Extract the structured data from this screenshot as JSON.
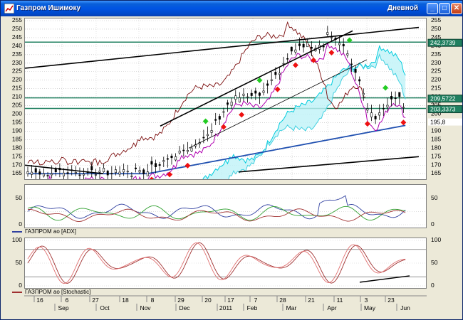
{
  "window": {
    "title": "Газпром Ишимоку",
    "right_title": "Дневной",
    "min_glyph": "_",
    "max_glyph": "□",
    "close_glyph": "✕"
  },
  "colors": {
    "grid": "#8a8a8a",
    "bull": "#000000",
    "up_signal": "#22cc22",
    "down_signal": "#ee1111",
    "cloud": "#00ccdd",
    "kijun": "#7a0b0b",
    "tenkan": "#b000b0",
    "sma": "#2050b0",
    "hline": "#208060",
    "trend": "#000000",
    "adx": "#3040a0",
    "stoch": "#a03030",
    "price_label_bg": "#208060"
  },
  "main_chart": {
    "y_ticks": [
      "255",
      "250",
      "245",
      "240",
      "235",
      "230",
      "225",
      "220",
      "215",
      "210",
      "205",
      "200",
      "195",
      "190",
      "185",
      "180",
      "175",
      "170",
      "165"
    ],
    "price_labels": [
      {
        "value": 242.3739,
        "text": "242,3739"
      },
      {
        "value": 209.5722,
        "text": "209,5722"
      },
      {
        "value": 203.3373,
        "text": "203,3373"
      },
      {
        "value": 195.8,
        "text": "195,8"
      }
    ]
  },
  "adx_panel": {
    "y_ticks": [
      "50",
      "0"
    ],
    "legend": "ГАЗПРОМ ao [ADX]"
  },
  "stoch_panel": {
    "y_ticks": [
      "100",
      "50",
      "0"
    ],
    "legend": "ГАЗПРОМ ao [Stochastic]"
  },
  "time_axis": {
    "day_labels": [
      "16",
      "6",
      "27",
      "18",
      "8",
      "29",
      "20",
      "17",
      "7",
      "28",
      "21",
      "11",
      "3",
      "23"
    ],
    "month_labels": [
      "Sep",
      "Oct",
      "Nov",
      "Dec",
      "2011",
      "Feb",
      "Mar",
      "Apr",
      "May",
      "Jun"
    ]
  }
}
